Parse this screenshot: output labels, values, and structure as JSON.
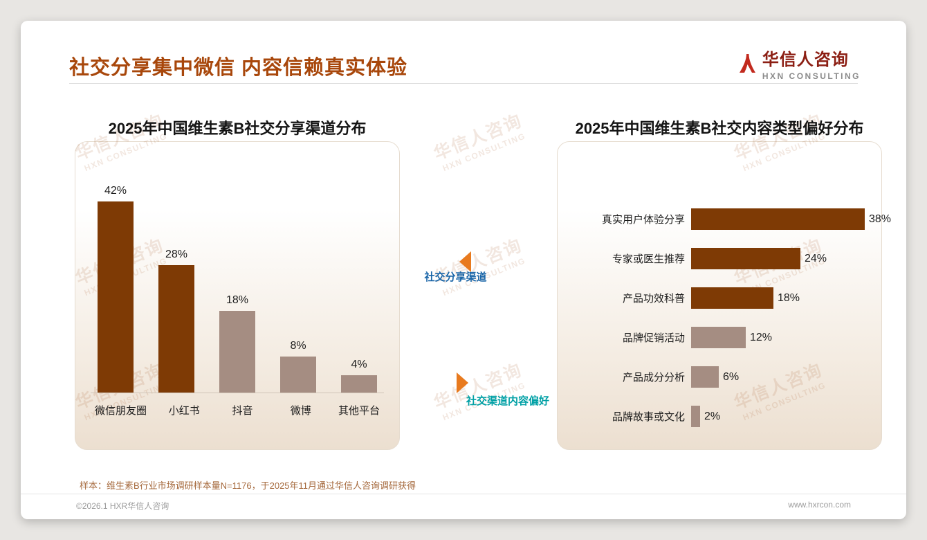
{
  "page": {
    "title": "社交分享集中微信 内容信赖真实体验",
    "footnote": "样本：维生素B行业市场调研样本量N=1176，于2025年11月通过华信人咨询调研获得",
    "copyright": "©2026.1 HXR华信人咨询",
    "website": "www.hxrcon.com",
    "watermark_cn": "华信人咨询",
    "watermark_en": "HXN CONSULTING"
  },
  "logo": {
    "name_cn": "华信人咨询",
    "name_en": "HXN CONSULTING"
  },
  "annotations": {
    "share_channel_label": "社交分享渠道",
    "content_preference_label": "社交渠道内容偏好"
  },
  "colors": {
    "accent": "#a8470b",
    "bar_dark": "#7e3a05",
    "bar_light": "#a58d82",
    "share_label_blue": "#1b66a8",
    "content_label_teal": "#00a0a5",
    "arrow_orange": "#e87a1e",
    "logo_red": "#c22a1e"
  },
  "chart_data": [
    {
      "type": "bar",
      "title": "2025年中国维生素B社交分享渠道分布",
      "categories": [
        "微信朋友圈",
        "小红书",
        "抖音",
        "微博",
        "其他平台"
      ],
      "values": [
        42,
        28,
        18,
        8,
        4
      ],
      "unit": "%",
      "ylim": [
        0,
        45
      ],
      "grid": false,
      "bar_colors": [
        "dark",
        "dark",
        "light",
        "light",
        "light"
      ]
    },
    {
      "type": "bar-horizontal",
      "title": "2025年中国维生素B社交内容类型偏好分布",
      "categories": [
        "真实用户体验分享",
        "专家或医生推荐",
        "产品功效科普",
        "品牌促销活动",
        "产品成分分析",
        "品牌故事或文化"
      ],
      "values": [
        38,
        24,
        18,
        12,
        6,
        2
      ],
      "unit": "%",
      "xlim": [
        0,
        40
      ],
      "grid": false,
      "bar_colors": [
        "dark",
        "dark",
        "dark",
        "light",
        "light",
        "light"
      ]
    }
  ]
}
